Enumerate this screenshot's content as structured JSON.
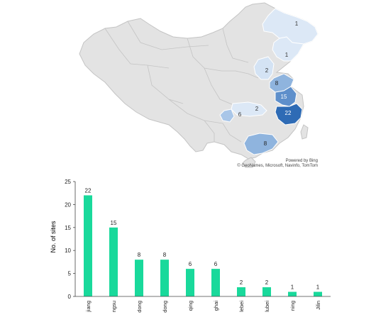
{
  "map": {
    "credit_line1": "Powered by Bing",
    "credit_line2": "© GeoNames, Microsoft, Navinfo, TomTom",
    "land_color": "#e3e3e3",
    "border_color": "#c4c4c4",
    "region_labels": [
      "1",
      "1",
      "2",
      "8",
      "15",
      "22",
      "2",
      "6",
      "8"
    ]
  },
  "chart_data": {
    "type": "bar",
    "ylabel": "No. of sites",
    "ylim": [
      0,
      25
    ],
    "yticks": [
      0,
      5,
      10,
      15,
      20,
      25
    ],
    "categories": [
      "jiang",
      "ngsu",
      "dong",
      "dong",
      "qing",
      "ghai",
      "lebei",
      "lubei",
      "ning",
      "Jilin"
    ],
    "values": [
      22,
      15,
      8,
      8,
      6,
      6,
      2,
      2,
      1,
      1
    ],
    "bar_color": "#19d99b",
    "grid": false,
    "legend": "none"
  }
}
